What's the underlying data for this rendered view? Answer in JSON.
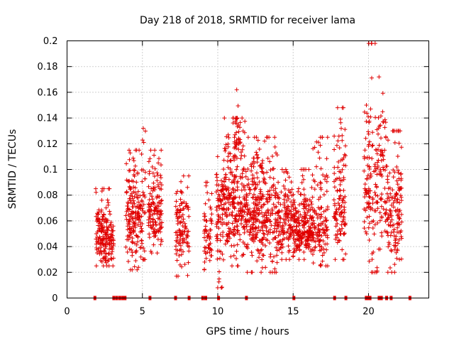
{
  "chart_data": {
    "type": "scatter",
    "title": "Day 218 of 2018, SRMTID for receiver lama",
    "xlabel": "GPS time / hours",
    "ylabel": "SRMTID / TECUs",
    "xlim": [
      0,
      24
    ],
    "ylim": [
      0,
      0.2
    ],
    "xticks": [
      0,
      5,
      10,
      15,
      20
    ],
    "xtick_labels": [
      "0",
      "5",
      "10",
      "15",
      "20"
    ],
    "yticks": [
      0,
      0.02,
      0.04,
      0.06,
      0.08,
      0.1,
      0.12,
      0.14,
      0.16,
      0.18,
      0.2
    ],
    "ytick_labels": [
      "0",
      "0.02",
      "0.04",
      "0.06",
      "0.08",
      "0.1",
      "0.12",
      "0.14",
      "0.16",
      "0.18",
      "0.2"
    ],
    "grid": true,
    "marker": "+",
    "color": "#e00000",
    "clusters": [
      {
        "x": [
          1.9,
          2.2
        ],
        "y": [
          0.025,
          0.085
        ],
        "center": 0.05,
        "n": 40
      },
      {
        "x": [
          2.2,
          3.1
        ],
        "y": [
          0.025,
          0.085
        ],
        "center": 0.048,
        "n": 140
      },
      {
        "x": [
          3.9,
          5.0
        ],
        "y": [
          0.022,
          0.115
        ],
        "center": 0.065,
        "n": 180
      },
      {
        "x": [
          4.9,
          5.2
        ],
        "y": [
          0.03,
          0.132
        ],
        "center": 0.08,
        "n": 25
      },
      {
        "x": [
          5.4,
          6.3
        ],
        "y": [
          0.035,
          0.115
        ],
        "center": 0.068,
        "n": 140
      },
      {
        "x": [
          7.2,
          8.1
        ],
        "y": [
          0.017,
          0.095
        ],
        "center": 0.05,
        "n": 110
      },
      {
        "x": [
          9.1,
          9.6
        ],
        "y": [
          0.022,
          0.09
        ],
        "center": 0.05,
        "n": 60
      },
      {
        "x": [
          9.9,
          10.4
        ],
        "y": [
          0.008,
          0.11
        ],
        "center": 0.065,
        "n": 80
      },
      {
        "x": [
          10.4,
          11.9
        ],
        "y": [
          0.025,
          0.14
        ],
        "center": 0.075,
        "n": 260
      },
      {
        "x": [
          11.1,
          11.5
        ],
        "y": [
          0.11,
          0.162
        ],
        "center": 0.125,
        "n": 25
      },
      {
        "x": [
          11.9,
          14.0
        ],
        "y": [
          0.02,
          0.125
        ],
        "center": 0.065,
        "n": 330
      },
      {
        "x": [
          14.0,
          15.2
        ],
        "y": [
          0.03,
          0.1
        ],
        "center": 0.06,
        "n": 160
      },
      {
        "x": [
          15.2,
          16.3
        ],
        "y": [
          0.03,
          0.1
        ],
        "center": 0.052,
        "n": 200
      },
      {
        "x": [
          16.3,
          17.3
        ],
        "y": [
          0.025,
          0.125
        ],
        "center": 0.055,
        "n": 130
      },
      {
        "x": [
          17.7,
          18.5
        ],
        "y": [
          0.03,
          0.148
        ],
        "center": 0.07,
        "n": 120
      },
      {
        "x": [
          19.7,
          20.1
        ],
        "y": [
          0.05,
          0.15
        ],
        "center": 0.085,
        "n": 50
      },
      {
        "x": [
          20.0,
          20.6
        ],
        "y": [
          0.02,
          0.198
        ],
        "center": 0.08,
        "n": 70
      },
      {
        "x": [
          20.6,
          21.2
        ],
        "y": [
          0.038,
          0.172
        ],
        "center": 0.1,
        "n": 70
      },
      {
        "x": [
          21.2,
          22.2
        ],
        "y": [
          0.02,
          0.13
        ],
        "center": 0.065,
        "n": 140
      }
    ],
    "baseline_markers_x": [
      1.85,
      3.1,
      3.3,
      3.5,
      3.7,
      3.85,
      5.5,
      7.2,
      8.1,
      9.0,
      9.2,
      10.05,
      11.9,
      15.05,
      17.75,
      18.5,
      19.85,
      20.0,
      20.1,
      20.7,
      20.85,
      21.2,
      21.5,
      22.75
    ]
  }
}
